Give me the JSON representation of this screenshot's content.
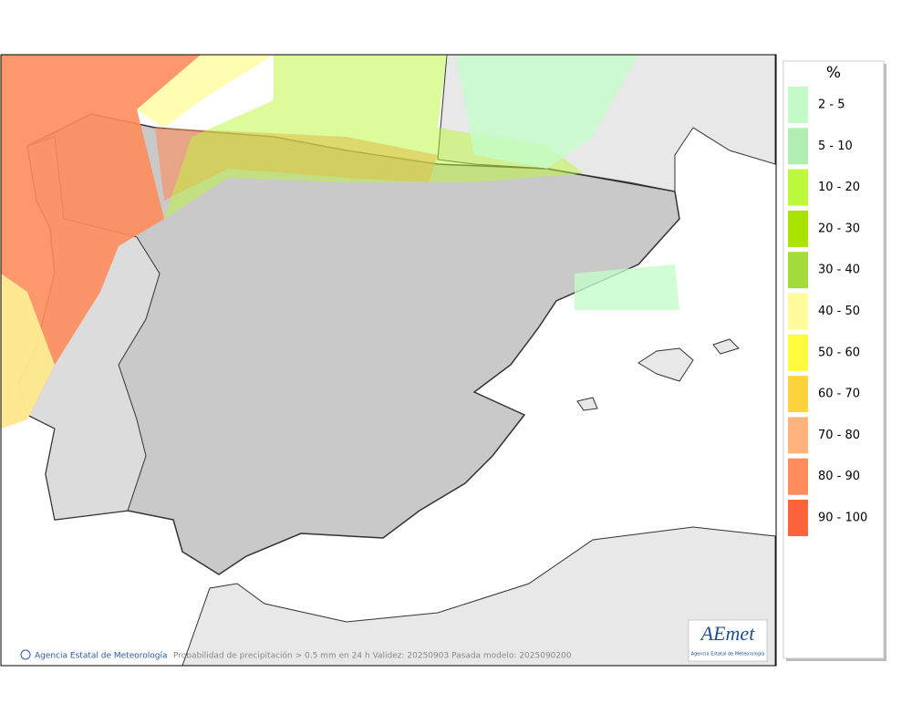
{
  "legend": {
    "title": "%",
    "items": [
      {
        "label": "2 - 5",
        "color": "#c4fcc8"
      },
      {
        "label": "5 - 10",
        "color": "#b2eeb4"
      },
      {
        "label": "10 - 20",
        "color": "#bcf83c"
      },
      {
        "label": "20 - 30",
        "color": "#a8e400"
      },
      {
        "label": "30 - 40",
        "color": "#a4dc3c"
      },
      {
        "label": "40 - 50",
        "color": "#fefc9c"
      },
      {
        "label": "50 - 60",
        "color": "#fefc3c"
      },
      {
        "label": "60 - 70",
        "color": "#fed43c"
      },
      {
        "label": "70 - 80",
        "color": "#feb47c"
      },
      {
        "label": "80 - 90",
        "color": "#fe8c5c"
      },
      {
        "label": "90 - 100",
        "color": "#fe643c"
      }
    ]
  },
  "footer": {
    "credit": "Agencia Estatal de Meteorología",
    "caption": "Probabilidad de precipitación > 0.5 mm en 24 h Validez: 20250903 Pasada modelo: 2025090200"
  },
  "logo": {
    "name": "AEmet",
    "subtitle": "Agencia Estatal de Meteorología"
  }
}
